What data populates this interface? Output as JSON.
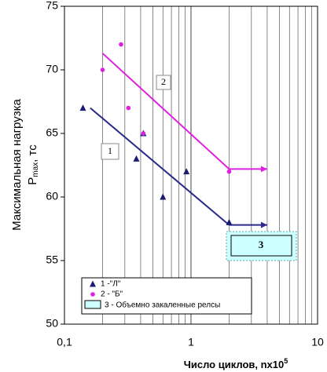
{
  "chart_data": {
    "type": "scatter",
    "xlabel": [
      "Число циклов, nx10",
      "5"
    ],
    "ylabel": [
      "Максимальная нагрузка",
      "P",
      "max",
      ", тс"
    ],
    "xscale": "log",
    "xlim": [
      0.1,
      10
    ],
    "ylim": [
      50,
      75
    ],
    "xticks": [
      {
        "value": 0.1,
        "label": "0,1"
      },
      1,
      10
    ],
    "minor_xticks": [
      0.2,
      0.3,
      0.4,
      0.5,
      0.6,
      0.7,
      0.8,
      0.9,
      2,
      3,
      4,
      5,
      6,
      7,
      8,
      9
    ],
    "yticks": [
      50,
      55,
      60,
      65,
      70,
      75
    ],
    "grid": true,
    "legend": "lower left",
    "series": [
      {
        "name": "1 -\"Л\"",
        "color": "#1b1b72",
        "marker": "triangle",
        "x": [
          0.14,
          0.37,
          0.42,
          0.6,
          0.92,
          2
        ],
        "values": [
          67,
          63,
          65,
          60,
          62,
          58
        ]
      },
      {
        "name": "2 - \"Б\"",
        "color": "#e020e0",
        "marker": "circle",
        "x": [
          0.2,
          0.28,
          0.32,
          0.42,
          2
        ],
        "values": [
          70,
          72,
          67,
          65,
          62
        ]
      }
    ],
    "trend_lines": [
      {
        "color": "#2a2a8a",
        "x": [
          0.16,
          2
        ],
        "values": [
          67,
          57.8
        ]
      },
      {
        "color": "#e020e0",
        "x": [
          0.2,
          2
        ],
        "values": [
          71.3,
          62.2
        ]
      }
    ],
    "arrows": [
      {
        "color": "#2a2a8a",
        "x": [
          2,
          4
        ],
        "values": [
          57.8,
          57.8
        ]
      },
      {
        "color": "#e020e0",
        "x": [
          2,
          4
        ],
        "values": [
          62.2,
          62.2
        ]
      }
    ],
    "zones": [
      {
        "name": "3 - Объемно закаленные релсы",
        "color": "#ccffff"
      }
    ],
    "annotations": [
      "1",
      "2",
      "3"
    ]
  }
}
